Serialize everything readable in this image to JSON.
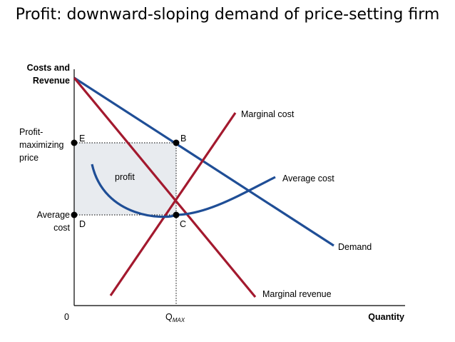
{
  "title": "Profit:  downward-sloping demand of price-setting firm",
  "colors": {
    "demand": "#1f4e96",
    "cost": "#a3192e",
    "profit_fill": "#e8ebef",
    "axis": "#000000"
  },
  "axes": {
    "y_label_line1": "Costs and",
    "y_label_line2": "Revenue",
    "x_label": "Quantity",
    "origin": "0"
  },
  "y_labels": {
    "price_line1": "Profit-",
    "price_line2": "maximizing",
    "price_line3": "price",
    "avgcost_line1": "Average",
    "avgcost_line2": "cost"
  },
  "x_tick": {
    "main": "Q",
    "sub": "MAX"
  },
  "points": {
    "E": "E",
    "B": "B",
    "D": "D",
    "C": "C"
  },
  "curves": {
    "marginal_cost": "Marginal cost",
    "average_cost": "Average cost",
    "demand": "Demand",
    "marginal_revenue": "Marginal revenue"
  },
  "region": {
    "profit": "profit"
  }
}
